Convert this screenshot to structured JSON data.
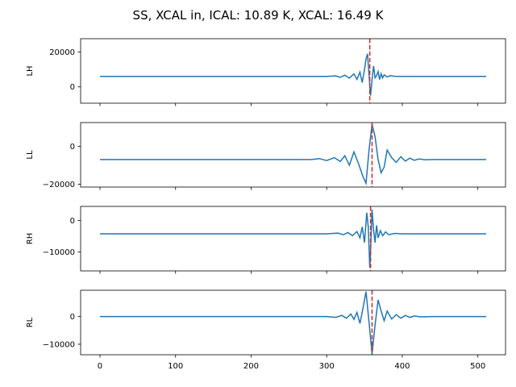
{
  "title": "SS, XCAL in, ICAL: 10.89 K, XCAL: 16.49 K",
  "colors": {
    "line": "#1f77b4",
    "marker": "#d62728",
    "axes": "#000000",
    "background": "#ffffff"
  },
  "chart_data": [
    {
      "type": "line",
      "ylabel": "LH",
      "xlim": [
        -25.6,
        536.6
      ],
      "ylim": [
        -9400,
        27700
      ],
      "xticks": [
        0,
        100,
        200,
        300,
        400,
        500
      ],
      "xtick_labels": [],
      "yticks": [
        0,
        20000
      ],
      "ytick_labels": [
        "0",
        "20000"
      ],
      "baseline": 6000,
      "vline": 357,
      "series": [
        {
          "x": [
            0,
            300,
            312,
            318,
            324,
            330,
            336,
            340,
            344,
            347,
            350,
            352,
            354,
            356,
            358,
            360,
            362,
            364,
            366,
            368,
            370,
            372,
            374,
            376,
            380,
            384,
            390,
            400,
            511
          ],
          "values": [
            6000,
            6000,
            6300,
            5500,
            6700,
            5000,
            7500,
            4300,
            8500,
            2500,
            10000,
            16000,
            19000,
            7000,
            -5000,
            4000,
            12000,
            5200,
            6400,
            8800,
            4200,
            7600,
            5100,
            6900,
            5700,
            6400,
            6100,
            6000,
            6000
          ]
        }
      ]
    },
    {
      "type": "line",
      "ylabel": "LL",
      "xlim": [
        -25.6,
        536.6
      ],
      "ylim": [
        -21500,
        12500
      ],
      "xticks": [
        0,
        100,
        200,
        300,
        400,
        500
      ],
      "xtick_labels": [],
      "yticks": [
        -20000,
        0
      ],
      "ytick_labels": [
        "−20000",
        "0"
      ],
      "baseline": -7000,
      "vline": 360,
      "series": [
        {
          "x": [
            0,
            280,
            290,
            300,
            310,
            318,
            324,
            330,
            336,
            342,
            348,
            352,
            356,
            360,
            364,
            368,
            372,
            376,
            380,
            386,
            392,
            398,
            404,
            410,
            416,
            422,
            430,
            440,
            511
          ],
          "values": [
            -7000,
            -7000,
            -6500,
            -7500,
            -6000,
            -8000,
            -5000,
            -10000,
            -3000,
            -9000,
            -16000,
            -19500,
            -2000,
            11500,
            5000,
            -7000,
            -14000,
            -11000,
            -2000,
            -6000,
            -8500,
            -5500,
            -7800,
            -6300,
            -7400,
            -6700,
            -7100,
            -7000,
            -7000
          ]
        }
      ]
    },
    {
      "type": "line",
      "ylabel": "RH",
      "xlim": [
        -25.6,
        536.6
      ],
      "ylim": [
        -16000,
        4500
      ],
      "xticks": [
        0,
        100,
        200,
        300,
        400,
        500
      ],
      "xtick_labels": [],
      "yticks": [
        -10000,
        0
      ],
      "ytick_labels": [
        "−10000",
        "0"
      ],
      "baseline": -4200,
      "vline": 358,
      "series": [
        {
          "x": [
            0,
            300,
            315,
            322,
            328,
            334,
            340,
            344,
            347,
            350,
            353,
            355,
            357,
            358,
            360,
            362,
            364,
            366,
            368,
            371,
            374,
            378,
            382,
            390,
            400,
            511
          ],
          "values": [
            -4200,
            -4200,
            -4000,
            -4500,
            -3800,
            -4800,
            -3500,
            -5500,
            -2000,
            -7000,
            2500,
            -2000,
            -15000,
            -10000,
            3500,
            -3000,
            -7000,
            -1500,
            -5500,
            -3200,
            -4800,
            -3600,
            -4500,
            -4100,
            -4200,
            -4200
          ]
        }
      ]
    },
    {
      "type": "line",
      "ylabel": "RL",
      "xlim": [
        -25.6,
        536.6
      ],
      "ylim": [
        -13800,
        9500
      ],
      "xticks": [
        0,
        100,
        200,
        300,
        400,
        500
      ],
      "xtick_labels": [
        "0",
        "100",
        "200",
        "300",
        "400",
        "500"
      ],
      "yticks": [
        -10000,
        0
      ],
      "ytick_labels": [
        "−10000",
        "0"
      ],
      "baseline": 0,
      "vline": 360,
      "series": [
        {
          "x": [
            0,
            300,
            312,
            320,
            326,
            332,
            336,
            340,
            344,
            348,
            352,
            356,
            360,
            364,
            368,
            372,
            376,
            380,
            386,
            392,
            398,
            404,
            410,
            416,
            424,
            440,
            511
          ],
          "values": [
            0,
            0,
            -300,
            400,
            -600,
            900,
            -1000,
            1500,
            -2500,
            3000,
            9000,
            -2000,
            -13500,
            -3000,
            6000,
            2000,
            -1500,
            2000,
            -900,
            700,
            -600,
            400,
            -300,
            200,
            -100,
            0,
            0
          ]
        }
      ]
    }
  ]
}
